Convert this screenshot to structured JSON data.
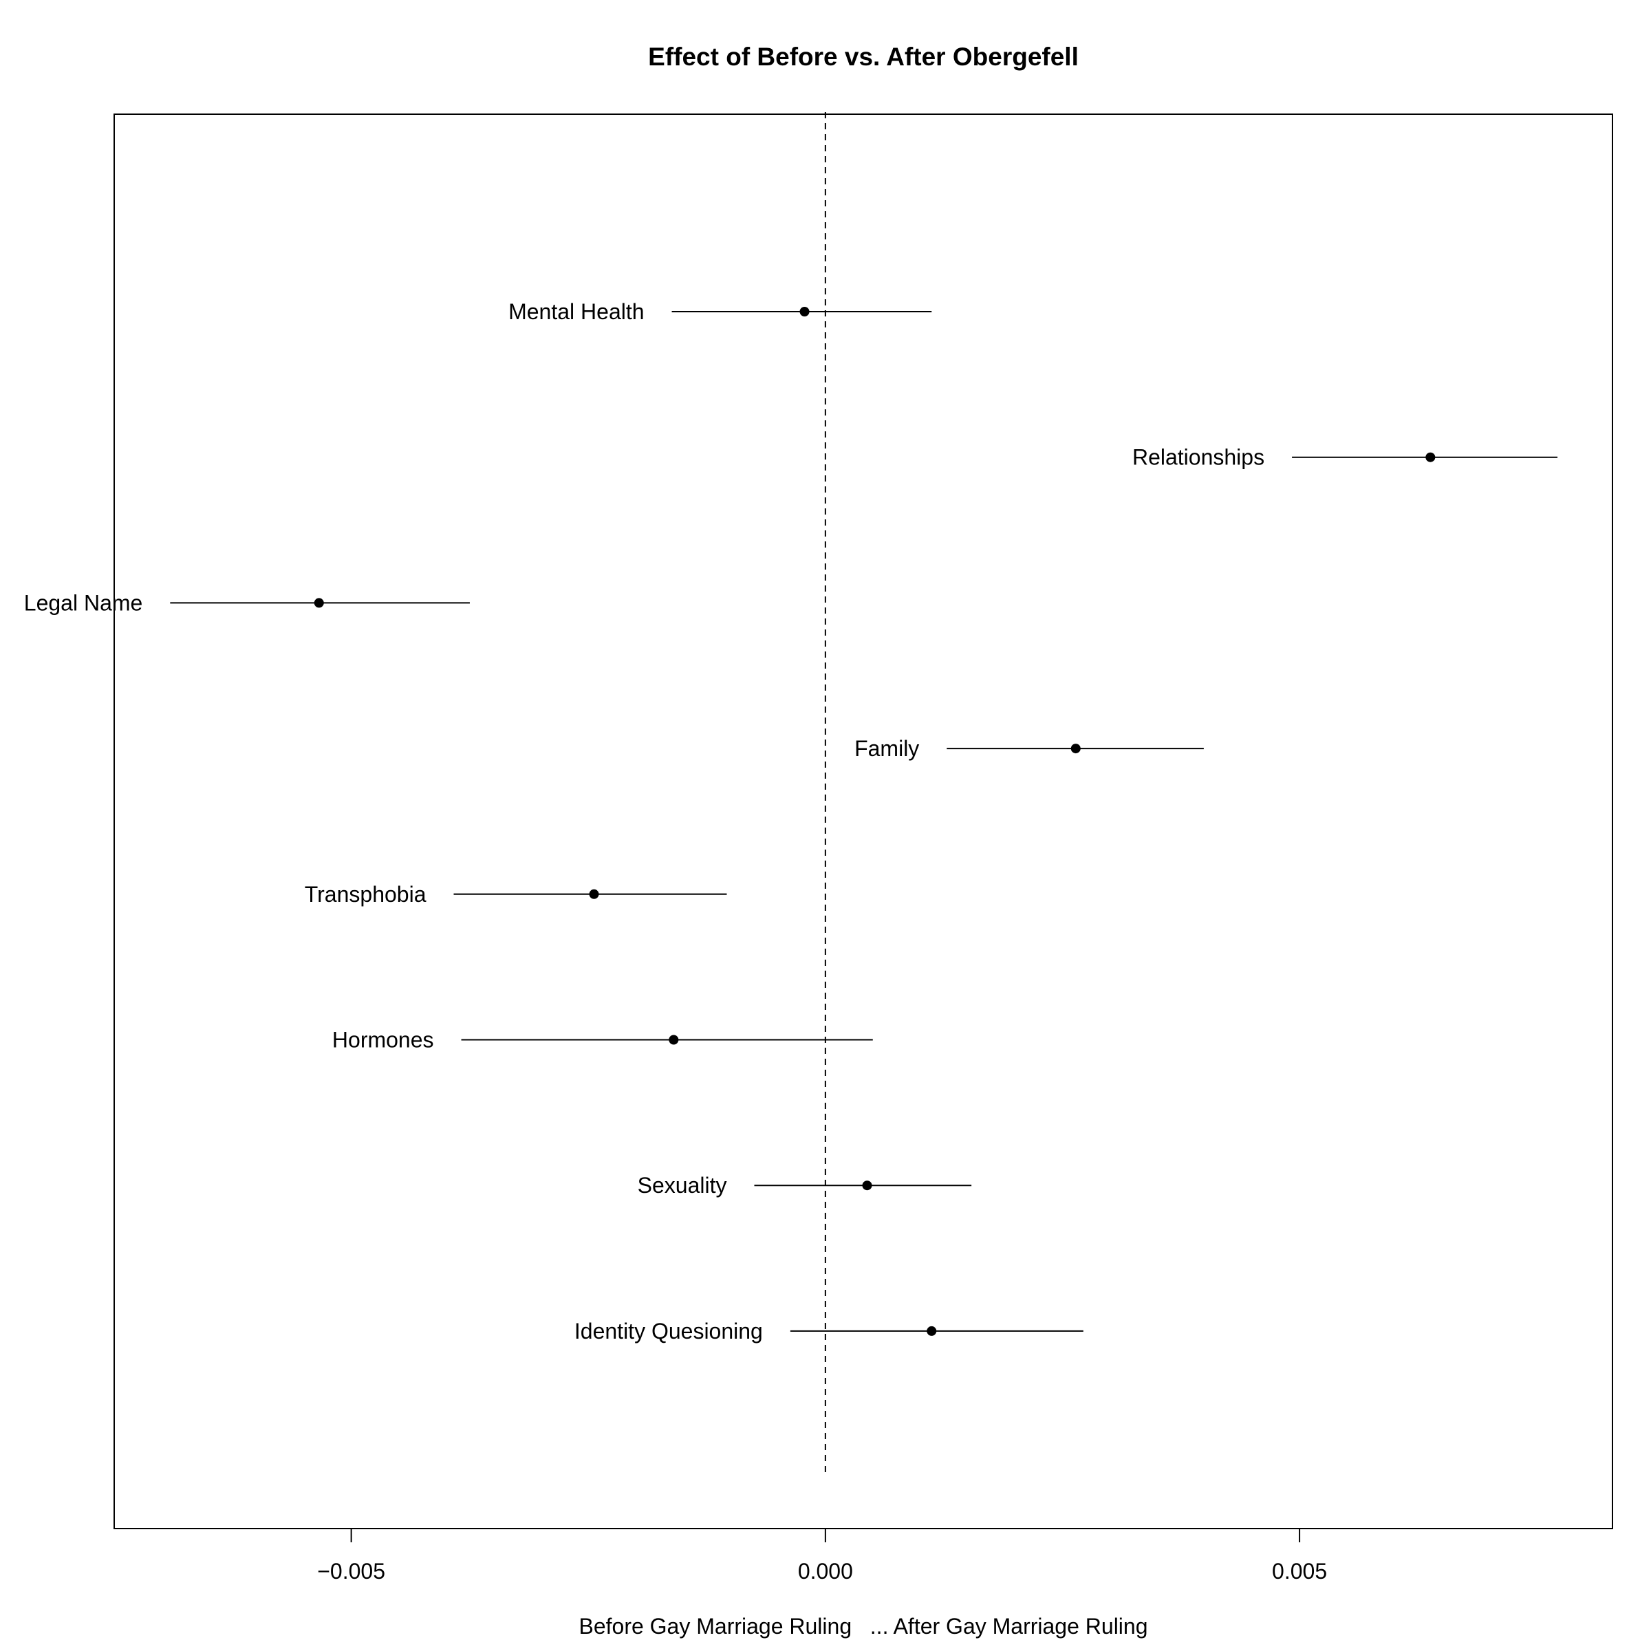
{
  "chart_data": {
    "type": "scatter",
    "title": "Effect of Before vs. After Obergefell",
    "xlabel": "Before Gay Marriage Ruling   ... After Gay Marriage Ruling",
    "ylabel": "",
    "xlim": [
      -0.0075,
      0.0083
    ],
    "x_ticks": [
      -0.005,
      0.0,
      0.005
    ],
    "x_tick_labels": [
      "−0.005",
      "0.000",
      "0.005"
    ],
    "reference_line_x": 0.0,
    "grid": false,
    "legend": "none",
    "series": [
      {
        "points": [
          {
            "label": "Mental Health",
            "estimate": -0.00022,
            "lower": -0.00162,
            "upper": 0.00112
          },
          {
            "label": "Relationships",
            "estimate": 0.00638,
            "lower": 0.00492,
            "upper": 0.00772
          },
          {
            "label": "Legal Name",
            "estimate": -0.00534,
            "lower": -0.00691,
            "upper": -0.00375
          },
          {
            "label": "Family",
            "estimate": 0.00264,
            "lower": 0.00128,
            "upper": 0.00399
          },
          {
            "label": "Transphobia",
            "estimate": -0.00244,
            "lower": -0.00392,
            "upper": -0.00104
          },
          {
            "label": "Hormones",
            "estimate": -0.0016,
            "lower": -0.00384,
            "upper": 0.0005
          },
          {
            "label": "Sexuality",
            "estimate": 0.00044,
            "lower": -0.00075,
            "upper": 0.00154
          },
          {
            "label": "Identity Quesioning",
            "estimate": 0.00112,
            "lower": -0.00037,
            "upper": 0.00272
          }
        ]
      }
    ]
  },
  "colors": {
    "ink": "#000000",
    "background": "#ffffff"
  }
}
